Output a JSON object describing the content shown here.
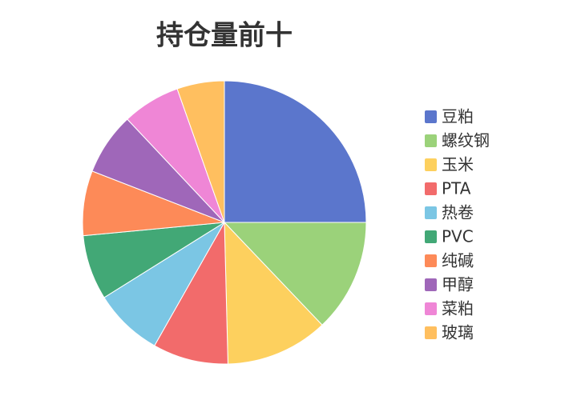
{
  "chart_data": {
    "type": "pie",
    "title": "持仓量前十",
    "categories": [
      "豆粕",
      "螺纹钢",
      "玉米",
      "PTA",
      "热卷",
      "PVC",
      "纯碱",
      "甲醇",
      "菜粕",
      "玻璃"
    ],
    "values": [
      25,
      12.9,
      11.7,
      8.6,
      7.9,
      7.4,
      7.4,
      7.1,
      6.6,
      5.4
    ],
    "colors": [
      "#5b76cc",
      "#9bd27a",
      "#fdd05e",
      "#f26b6b",
      "#7bc6e4",
      "#42a876",
      "#fd8a58",
      "#9f67b9",
      "#ef86d6",
      "#ffbf5f"
    ],
    "legend": "right"
  }
}
